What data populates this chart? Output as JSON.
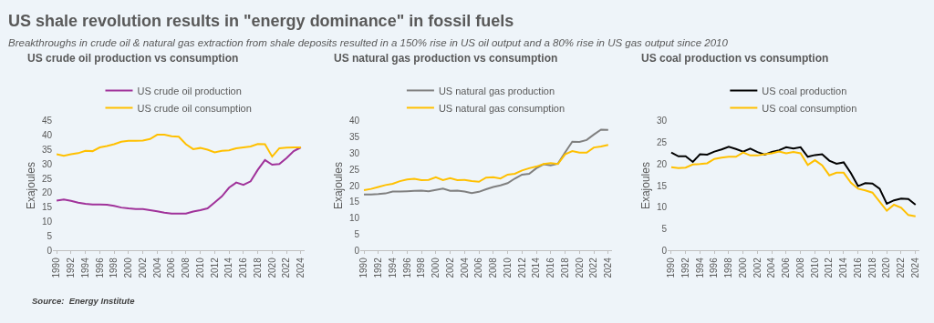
{
  "chart_data": [
    {
      "type": "line",
      "title": "US crude oil production vs consumption",
      "ylabel": "Exajoules",
      "annotations": [
        "US shale revolution results in \"energy dominance\" in fossil fuels",
        "Breakthroughs in crude oil & natural gas extraction from shale deposits resulted in a 150% rise in US oil output and a 80% rise in US gas output since 2010",
        "Source:  Energy Institute"
      ],
      "x": [
        1990,
        1991,
        1992,
        1993,
        1994,
        1995,
        1996,
        1997,
        1998,
        1999,
        2000,
        2001,
        2002,
        2003,
        2004,
        2005,
        2006,
        2007,
        2008,
        2009,
        2010,
        2011,
        2012,
        2013,
        2014,
        2015,
        2016,
        2017,
        2018,
        2019,
        2020,
        2021,
        2022,
        2023,
        2024
      ],
      "series": [
        {
          "name": "US crude oil production",
          "color": "#a0329a",
          "values": [
            17.3,
            17.7,
            17.2,
            16.6,
            16.2,
            16.0,
            16.0,
            15.9,
            15.5,
            14.9,
            14.6,
            14.4,
            14.4,
            14.0,
            13.6,
            13.1,
            12.8,
            12.8,
            12.8,
            13.5,
            14.0,
            14.6,
            16.7,
            18.8,
            21.8,
            23.6,
            22.8,
            24.0,
            28.0,
            31.4,
            29.8,
            30.0,
            32.1,
            34.5,
            35.8
          ]
        },
        {
          "name": "US crude oil consumption",
          "color": "#ffc000",
          "values": [
            33.4,
            32.9,
            33.4,
            33.8,
            34.6,
            34.5,
            35.8,
            36.3,
            36.9,
            37.8,
            38.1,
            38.1,
            38.2,
            38.7,
            40.2,
            40.2,
            39.7,
            39.5,
            36.9,
            35.2,
            35.6,
            35.0,
            34.1,
            34.6,
            34.8,
            35.5,
            35.8,
            36.1,
            37.0,
            36.9,
            32.6,
            35.5,
            35.7,
            35.8,
            35.8
          ]
        }
      ],
      "xlim": [
        1989.5,
        2024.5
      ],
      "xticks": [
        1990,
        1992,
        1994,
        1996,
        1998,
        2000,
        2002,
        2004,
        2006,
        2008,
        2010,
        2012,
        2014,
        2016,
        2018,
        2020,
        2022,
        2024
      ],
      "ylim": [
        0,
        45
      ],
      "yticks": [
        0,
        5,
        10,
        15,
        20,
        25,
        30,
        35,
        40,
        45
      ],
      "grid": false,
      "legend": "top",
      "marker": "none",
      "line_style": "solid"
    },
    {
      "type": "line",
      "title": "US natural gas production vs consumption",
      "ylabel": "Exajoules",
      "x": [
        1990,
        1991,
        1992,
        1993,
        1994,
        1995,
        1996,
        1997,
        1998,
        1999,
        2000,
        2001,
        2002,
        2003,
        2004,
        2005,
        2006,
        2007,
        2008,
        2009,
        2010,
        2011,
        2012,
        2013,
        2014,
        2015,
        2016,
        2017,
        2018,
        2019,
        2020,
        2021,
        2022,
        2023,
        2024
      ],
      "series": [
        {
          "name": "US natural gas production",
          "color": "#808080",
          "values": [
            17.3,
            17.3,
            17.4,
            17.6,
            18.2,
            18.2,
            18.3,
            18.4,
            18.5,
            18.3,
            18.7,
            19.1,
            18.4,
            18.5,
            18.2,
            17.7,
            18.1,
            18.9,
            19.6,
            20.1,
            20.8,
            22.2,
            23.4,
            23.7,
            25.4,
            26.6,
            26.3,
            26.8,
            30.3,
            33.6,
            33.5,
            34.1,
            35.8,
            37.3,
            37.2
          ]
        },
        {
          "name": "US natural gas consumption",
          "color": "#ffc000",
          "values": [
            18.6,
            19.0,
            19.6,
            20.2,
            20.6,
            21.4,
            21.9,
            22.1,
            21.7,
            21.8,
            22.6,
            21.7,
            22.3,
            21.7,
            21.8,
            21.4,
            21.2,
            22.5,
            22.6,
            22.2,
            23.4,
            23.7,
            24.7,
            25.4,
            25.9,
            26.7,
            27.0,
            26.7,
            29.7,
            30.7,
            30.2,
            30.2,
            31.8,
            32.1,
            32.6
          ]
        }
      ],
      "xlim": [
        1989.5,
        2024.5
      ],
      "xticks": [
        1990,
        1992,
        1994,
        1996,
        1998,
        2000,
        2002,
        2004,
        2006,
        2008,
        2010,
        2012,
        2014,
        2016,
        2018,
        2020,
        2022,
        2024
      ],
      "ylim": [
        0,
        40
      ],
      "yticks": [
        0,
        5,
        10,
        15,
        20,
        25,
        30,
        35,
        40
      ],
      "grid": false,
      "legend": "top",
      "marker": "none",
      "line_style": "solid"
    },
    {
      "type": "line",
      "title": "US coal production vs consumption",
      "ylabel": "Exajoules",
      "x": [
        1990,
        1991,
        1992,
        1993,
        1994,
        1995,
        1996,
        1997,
        1998,
        1999,
        2000,
        2001,
        2002,
        2003,
        2004,
        2005,
        2006,
        2007,
        2008,
        2009,
        2010,
        2011,
        2012,
        2013,
        2014,
        2015,
        2016,
        2017,
        2018,
        2019,
        2020,
        2021,
        2022,
        2023,
        2024
      ],
      "series": [
        {
          "name": "US coal production",
          "color": "#000000",
          "values": [
            22.7,
            21.8,
            21.8,
            20.5,
            22.3,
            22.2,
            22.9,
            23.4,
            24.0,
            23.5,
            22.9,
            23.6,
            22.8,
            22.2,
            22.8,
            23.2,
            23.9,
            23.6,
            23.9,
            21.7,
            22.1,
            22.3,
            20.8,
            20.1,
            20.4,
            17.9,
            14.9,
            15.6,
            15.5,
            14.3,
            10.8,
            11.6,
            12.0,
            11.9,
            10.6
          ]
        },
        {
          "name": "US coal consumption",
          "color": "#ffc000",
          "values": [
            19.3,
            19.1,
            19.2,
            19.9,
            20.0,
            20.2,
            21.2,
            21.5,
            21.7,
            21.7,
            22.7,
            22.0,
            22.0,
            22.3,
            22.5,
            22.9,
            22.5,
            22.8,
            22.5,
            19.8,
            20.9,
            19.7,
            17.4,
            18.0,
            18.0,
            15.7,
            14.3,
            13.9,
            13.4,
            11.3,
            9.2,
            10.6,
            9.9,
            8.2,
            7.9
          ]
        }
      ],
      "xlim": [
        1989.5,
        2024.5
      ],
      "xticks": [
        1990,
        1992,
        1994,
        1996,
        1998,
        2000,
        2002,
        2004,
        2006,
        2008,
        2010,
        2012,
        2014,
        2016,
        2018,
        2020,
        2022,
        2024
      ],
      "ylim": [
        0,
        30
      ],
      "yticks": [
        0,
        5,
        10,
        15,
        20,
        25,
        30
      ],
      "grid": false,
      "legend": "top",
      "marker": "none",
      "line_style": "solid"
    }
  ]
}
